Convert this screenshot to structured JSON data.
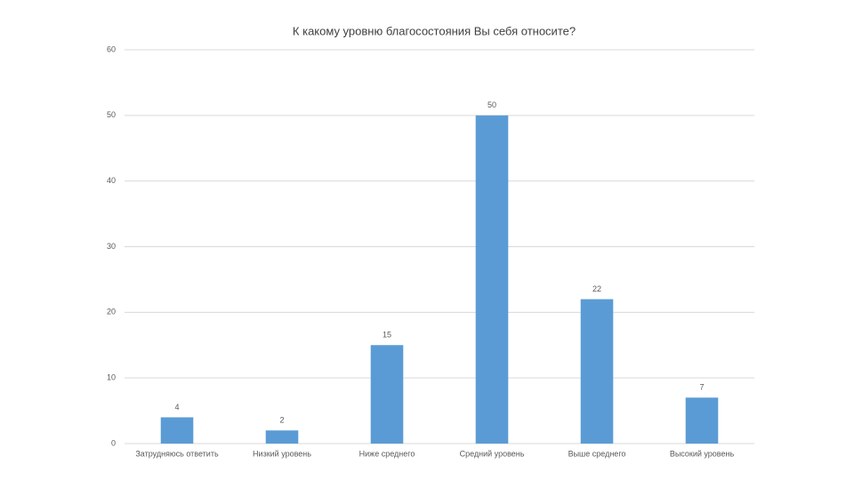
{
  "chart_data": {
    "type": "bar",
    "title": "К какому уровню благосостояния Вы себя относите?",
    "categories": [
      "Затрудняюсь ответить",
      "Низкий уровень",
      "Ниже среднего",
      "Средний уровень",
      "Выше среднего",
      "Высокий уровень"
    ],
    "values": [
      4,
      2,
      15,
      50,
      22,
      7
    ],
    "color": "#5b9bd5",
    "ylim": [
      0,
      60
    ],
    "yticks": [
      0,
      10,
      20,
      30,
      40,
      50,
      60
    ],
    "grid": true,
    "data_labels": true
  }
}
